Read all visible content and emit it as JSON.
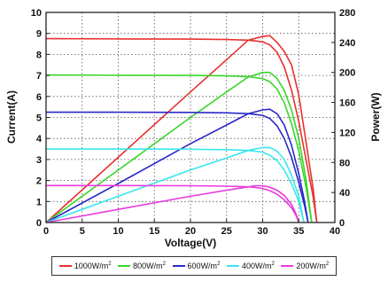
{
  "chart_data": {
    "type": "line",
    "title": "",
    "xlabel": "Voltage(V)",
    "ylabel_left": "Current(A)",
    "ylabel_right": "Power(W)",
    "xlim": [
      0,
      40
    ],
    "ylim_left": [
      0,
      10
    ],
    "ylim_right": [
      0,
      280
    ],
    "x_ticks": [
      "0",
      "5",
      "10",
      "15",
      "20",
      "25",
      "30",
      "35",
      "40"
    ],
    "y_left_ticks": [
      "0",
      "1",
      "2",
      "3",
      "4",
      "5",
      "6",
      "7",
      "8",
      "9",
      "10"
    ],
    "y_right_ticks": [
      "0",
      "40",
      "80",
      "120",
      "160",
      "200",
      "240",
      "280"
    ],
    "grid": true,
    "legend_position": "bottom",
    "series": [
      {
        "name": "1000W/m",
        "sup": "2",
        "color": "#e8312f",
        "iv": [
          [
            0,
            8.75
          ],
          [
            10,
            8.74
          ],
          [
            20,
            8.73
          ],
          [
            25,
            8.71
          ],
          [
            28,
            8.68
          ],
          [
            30,
            8.6
          ],
          [
            31,
            8.45
          ],
          [
            32,
            8.1
          ],
          [
            33,
            7.4
          ],
          [
            34,
            6.3
          ],
          [
            35,
            4.8
          ],
          [
            36,
            3.0
          ],
          [
            37,
            1.2
          ],
          [
            37.5,
            0
          ]
        ],
        "pv": [
          [
            0,
            0
          ],
          [
            10,
            87
          ],
          [
            20,
            174
          ],
          [
            25,
            217
          ],
          [
            28,
            243
          ],
          [
            30,
            248
          ],
          [
            31,
            249
          ],
          [
            32,
            240
          ],
          [
            33,
            228
          ],
          [
            34,
            210
          ],
          [
            35,
            170
          ],
          [
            36,
            108
          ],
          [
            37,
            44
          ],
          [
            37.5,
            0
          ]
        ]
      },
      {
        "name": "800W/m",
        "sup": "2",
        "color": "#3ad62a",
        "iv": [
          [
            0,
            7.02
          ],
          [
            10,
            7.01
          ],
          [
            20,
            7.0
          ],
          [
            25,
            6.98
          ],
          [
            28,
            6.94
          ],
          [
            30,
            6.85
          ],
          [
            31,
            6.7
          ],
          [
            32,
            6.35
          ],
          [
            33,
            5.7
          ],
          [
            34,
            4.7
          ],
          [
            35,
            3.4
          ],
          [
            36,
            1.7
          ],
          [
            36.8,
            0
          ]
        ],
        "pv": [
          [
            0,
            0
          ],
          [
            10,
            70
          ],
          [
            20,
            140
          ],
          [
            25,
            174
          ],
          [
            28,
            194
          ],
          [
            30,
            200
          ],
          [
            31,
            200
          ],
          [
            32,
            192
          ],
          [
            33,
            176
          ],
          [
            34,
            150
          ],
          [
            35,
            112
          ],
          [
            36,
            58
          ],
          [
            36.8,
            0
          ]
        ]
      },
      {
        "name": "600W/m",
        "sup": "2",
        "color": "#2929c9",
        "iv": [
          [
            0,
            5.25
          ],
          [
            10,
            5.25
          ],
          [
            20,
            5.24
          ],
          [
            25,
            5.22
          ],
          [
            28,
            5.18
          ],
          [
            30,
            5.1
          ],
          [
            31,
            4.95
          ],
          [
            32,
            4.6
          ],
          [
            33,
            4.0
          ],
          [
            34,
            3.1
          ],
          [
            35,
            1.9
          ],
          [
            35.8,
            0.8
          ],
          [
            36.3,
            0
          ]
        ],
        "pv": [
          [
            0,
            0
          ],
          [
            10,
            52
          ],
          [
            20,
            105
          ],
          [
            25,
            130
          ],
          [
            28,
            145
          ],
          [
            30,
            150
          ],
          [
            31,
            151
          ],
          [
            32,
            145
          ],
          [
            33,
            130
          ],
          [
            34,
            103
          ],
          [
            35,
            65
          ],
          [
            35.8,
            28
          ],
          [
            36.3,
            0
          ]
        ]
      },
      {
        "name": "400W/m",
        "sup": "2",
        "color": "#38e6ee",
        "iv": [
          [
            0,
            3.5
          ],
          [
            10,
            3.5
          ],
          [
            20,
            3.49
          ],
          [
            25,
            3.47
          ],
          [
            28,
            3.43
          ],
          [
            30,
            3.35
          ],
          [
            31,
            3.2
          ],
          [
            32,
            2.95
          ],
          [
            33,
            2.5
          ],
          [
            34,
            1.85
          ],
          [
            35,
            1.0
          ],
          [
            35.7,
            0
          ]
        ],
        "pv": [
          [
            0,
            0
          ],
          [
            10,
            35
          ],
          [
            20,
            70
          ],
          [
            25,
            86
          ],
          [
            28,
            96
          ],
          [
            30,
            100
          ],
          [
            31,
            100
          ],
          [
            32,
            95
          ],
          [
            33,
            84
          ],
          [
            34,
            63
          ],
          [
            35,
            35
          ],
          [
            35.7,
            0
          ]
        ]
      },
      {
        "name": "200W/m",
        "sup": "2",
        "color": "#e83ae0",
        "iv": [
          [
            0,
            1.76
          ],
          [
            10,
            1.76
          ],
          [
            20,
            1.75
          ],
          [
            25,
            1.73
          ],
          [
            28,
            1.7
          ],
          [
            29,
            1.67
          ],
          [
            30,
            1.62
          ],
          [
            31,
            1.52
          ],
          [
            32,
            1.35
          ],
          [
            33,
            1.08
          ],
          [
            34,
            0.7
          ],
          [
            34.6,
            0.35
          ],
          [
            35,
            0
          ]
        ],
        "pv": [
          [
            0,
            0
          ],
          [
            10,
            17.5
          ],
          [
            20,
            35
          ],
          [
            25,
            43
          ],
          [
            28,
            47.5
          ],
          [
            29,
            49
          ],
          [
            30,
            49
          ],
          [
            31,
            47
          ],
          [
            32,
            43
          ],
          [
            33,
            36
          ],
          [
            34,
            24
          ],
          [
            34.6,
            12
          ],
          [
            35,
            0
          ]
        ]
      }
    ]
  }
}
